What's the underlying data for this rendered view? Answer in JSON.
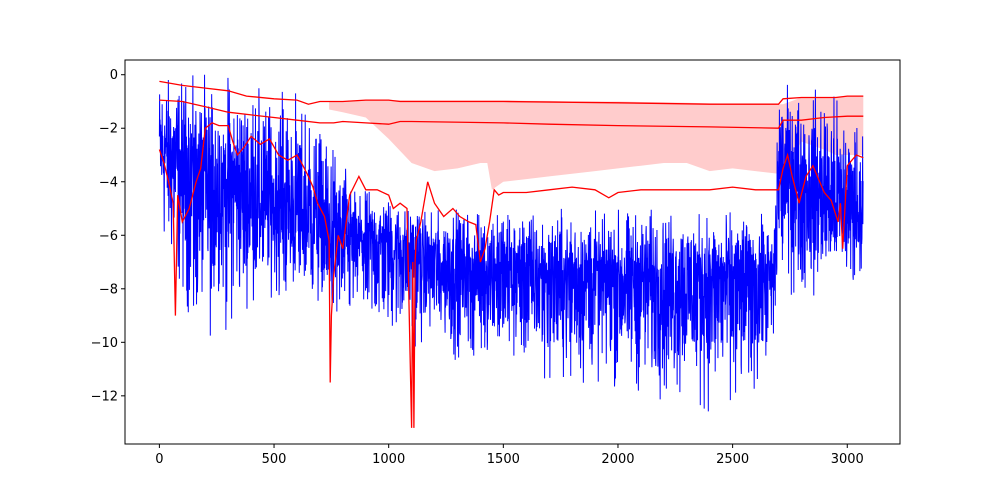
{
  "chart_data": {
    "type": "line",
    "title": "",
    "xlabel": "",
    "ylabel": "",
    "xlim": [
      -150,
      3230
    ],
    "ylim": [
      -13.8,
      0.55
    ],
    "grid": false,
    "x_ticks": [
      0,
      500,
      1000,
      1500,
      2000,
      2500,
      3000
    ],
    "y_ticks": [
      0,
      -2,
      -4,
      -6,
      -8,
      -10,
      -12
    ],
    "x_tick_labels": [
      "0",
      "500",
      "1000",
      "1500",
      "2000",
      "2500",
      "3000"
    ],
    "y_tick_labels": [
      "0",
      "−2",
      "−4",
      "−6",
      "−8",
      "−10",
      "−12"
    ],
    "series": [
      {
        "role": "noisy-signal",
        "color": "#0000ff",
        "n_points": 3070,
        "envelope": {
          "x": [
            0,
            100,
            200,
            300,
            400,
            500,
            600,
            700,
            760,
            850,
            1000,
            1100,
            1200,
            1400,
            1500,
            1700,
            2000,
            2300,
            2500,
            2680,
            2700,
            2800,
            2900,
            3000,
            3070
          ],
          "upper": [
            0,
            0,
            0,
            0,
            -0.5,
            -0.5,
            -0.5,
            -1.5,
            -2.5,
            -4.0,
            -4.5,
            -5.0,
            -5.0,
            -5.0,
            -5.0,
            -5.0,
            -5.0,
            -5.0,
            -5.0,
            -5.0,
            -0.2,
            -0.5,
            -0.5,
            -1.0,
            -1.5
          ],
          "center": [
            -2.5,
            -3.5,
            -4.0,
            -4.0,
            -4.5,
            -5.0,
            -5.2,
            -5.5,
            -6.2,
            -6.2,
            -6.3,
            -6.5,
            -7.0,
            -7.2,
            -7.3,
            -7.5,
            -7.6,
            -7.6,
            -7.7,
            -7.8,
            -3.5,
            -4.0,
            -4.5,
            -5.0,
            -5.0
          ],
          "lower": [
            -6.3,
            -8.6,
            -10.5,
            -9.5,
            -8.6,
            -8.5,
            -8.5,
            -8.8,
            -9.5,
            -9.8,
            -10.0,
            -10.2,
            -10.5,
            -11.0,
            -11.0,
            -11.5,
            -11.8,
            -12.5,
            -12.7,
            -11.0,
            -8.0,
            -8.5,
            -8.5,
            -8.0,
            -7.2
          ]
        }
      },
      {
        "role": "upper-bound",
        "color": "#ff0000",
        "x": [
          0,
          100,
          200,
          300,
          380,
          500,
          600,
          650,
          700,
          800,
          900,
          1000,
          1050,
          1500,
          2000,
          2400,
          2600,
          2700,
          2720,
          2800,
          2950,
          3000,
          3070
        ],
        "y": [
          -0.25,
          -0.4,
          -0.5,
          -0.6,
          -0.8,
          -0.9,
          -0.95,
          -1.1,
          -1.0,
          -1.0,
          -0.95,
          -0.95,
          -1.0,
          -1.0,
          -1.05,
          -1.1,
          -1.1,
          -1.1,
          -0.9,
          -0.85,
          -0.85,
          -0.8,
          -0.8
        ]
      },
      {
        "role": "middle-line",
        "color": "#ff0000",
        "x": [
          0,
          100,
          200,
          300,
          400,
          500,
          600,
          700,
          760,
          800,
          900,
          1000,
          1050,
          1100,
          1500,
          1700,
          2000,
          2400,
          2700,
          2720,
          2800,
          2900,
          3000,
          3070
        ],
        "y": [
          -0.95,
          -1.0,
          -1.2,
          -1.4,
          -1.5,
          -1.6,
          -1.7,
          -1.8,
          -1.8,
          -1.75,
          -1.8,
          -1.85,
          -1.75,
          -1.75,
          -1.8,
          -1.85,
          -1.9,
          -1.95,
          -2.0,
          -1.7,
          -1.7,
          -1.6,
          -1.55,
          -1.55
        ]
      },
      {
        "role": "lower-trace",
        "color": "#ff0000",
        "x": [
          0,
          20,
          40,
          60,
          70,
          80,
          100,
          130,
          160,
          180,
          200,
          230,
          260,
          300,
          320,
          340,
          370,
          400,
          440,
          480,
          520,
          560,
          600,
          620,
          650,
          670,
          690,
          720,
          740,
          745,
          750,
          760,
          780,
          800,
          830,
          870,
          900,
          950,
          1000,
          1020,
          1050,
          1080,
          1100,
          1105,
          1110,
          1115,
          1120,
          1140,
          1170,
          1200,
          1240,
          1280,
          1310,
          1350,
          1380,
          1400,
          1420,
          1440,
          1460,
          1480,
          1500,
          1600,
          1700,
          1800,
          1900,
          1960,
          2000,
          2100,
          2200,
          2300,
          2400,
          2500,
          2600,
          2700,
          2720,
          2740,
          2760,
          2790,
          2820,
          2850,
          2880,
          2900,
          2930,
          2960,
          2970,
          2980,
          3000,
          3020,
          3040,
          3070
        ],
        "y": [
          -2.8,
          -3.3,
          -4.0,
          -4.8,
          -9.0,
          -4.5,
          -5.5,
          -5.0,
          -4.0,
          -3.5,
          -2.0,
          -1.8,
          -1.9,
          -1.9,
          -2.5,
          -3.0,
          -2.7,
          -2.3,
          -2.6,
          -2.4,
          -3.0,
          -3.2,
          -3.0,
          -3.3,
          -3.8,
          -4.2,
          -4.8,
          -5.3,
          -6.2,
          -11.5,
          -9.0,
          -7.5,
          -6.0,
          -6.5,
          -4.5,
          -3.8,
          -4.3,
          -4.3,
          -4.5,
          -5.0,
          -4.8,
          -5.0,
          -13.2,
          -7.0,
          -13.2,
          -7.0,
          -6.2,
          -5.5,
          -4.0,
          -4.8,
          -5.3,
          -5.0,
          -5.3,
          -5.5,
          -5.6,
          -7.0,
          -6.5,
          -5.5,
          -4.3,
          -4.5,
          -4.4,
          -4.4,
          -4.3,
          -4.2,
          -4.3,
          -4.6,
          -4.4,
          -4.3,
          -4.3,
          -4.3,
          -4.3,
          -4.2,
          -4.3,
          -4.3,
          -3.5,
          -3.0,
          -3.8,
          -4.8,
          -3.8,
          -3.4,
          -4.0,
          -4.4,
          -4.7,
          -5.5,
          -4.8,
          -6.5,
          -3.4,
          -3.2,
          -3.0,
          -3.1
        ]
      },
      {
        "role": "shaded-band",
        "color": "#ffcccc",
        "x": [
          740,
          800,
          900,
          1000,
          1100,
          1200,
          1300,
          1400,
          1430,
          1450,
          1500,
          1600,
          1700,
          1800,
          1900,
          2000,
          2100,
          2200,
          2300,
          2400,
          2500,
          2600,
          2700,
          2720,
          2800,
          2900,
          2950,
          3000,
          3070
        ],
        "y_top": [
          -1.0,
          -1.0,
          -0.95,
          -0.95,
          -0.95,
          -0.95,
          -0.95,
          -0.95,
          -0.95,
          -0.95,
          -0.95,
          -0.97,
          -0.98,
          -1.0,
          -1.0,
          -1.0,
          -1.02,
          -1.03,
          -1.05,
          -1.07,
          -1.08,
          -1.1,
          -1.1,
          -1.1,
          -0.85,
          -0.85,
          -0.85,
          -0.8,
          -0.8
        ],
        "y_bottom": [
          -1.3,
          -1.4,
          -1.6,
          -2.4,
          -3.3,
          -3.6,
          -3.5,
          -3.3,
          -3.3,
          -4.3,
          -4.0,
          -3.9,
          -3.8,
          -3.7,
          -3.6,
          -3.5,
          -3.4,
          -3.3,
          -3.3,
          -3.6,
          -3.5,
          -3.6,
          -3.7,
          -3.7,
          -2.5,
          -2.8,
          -3.0,
          -3.0,
          -3.0
        ]
      }
    ]
  }
}
